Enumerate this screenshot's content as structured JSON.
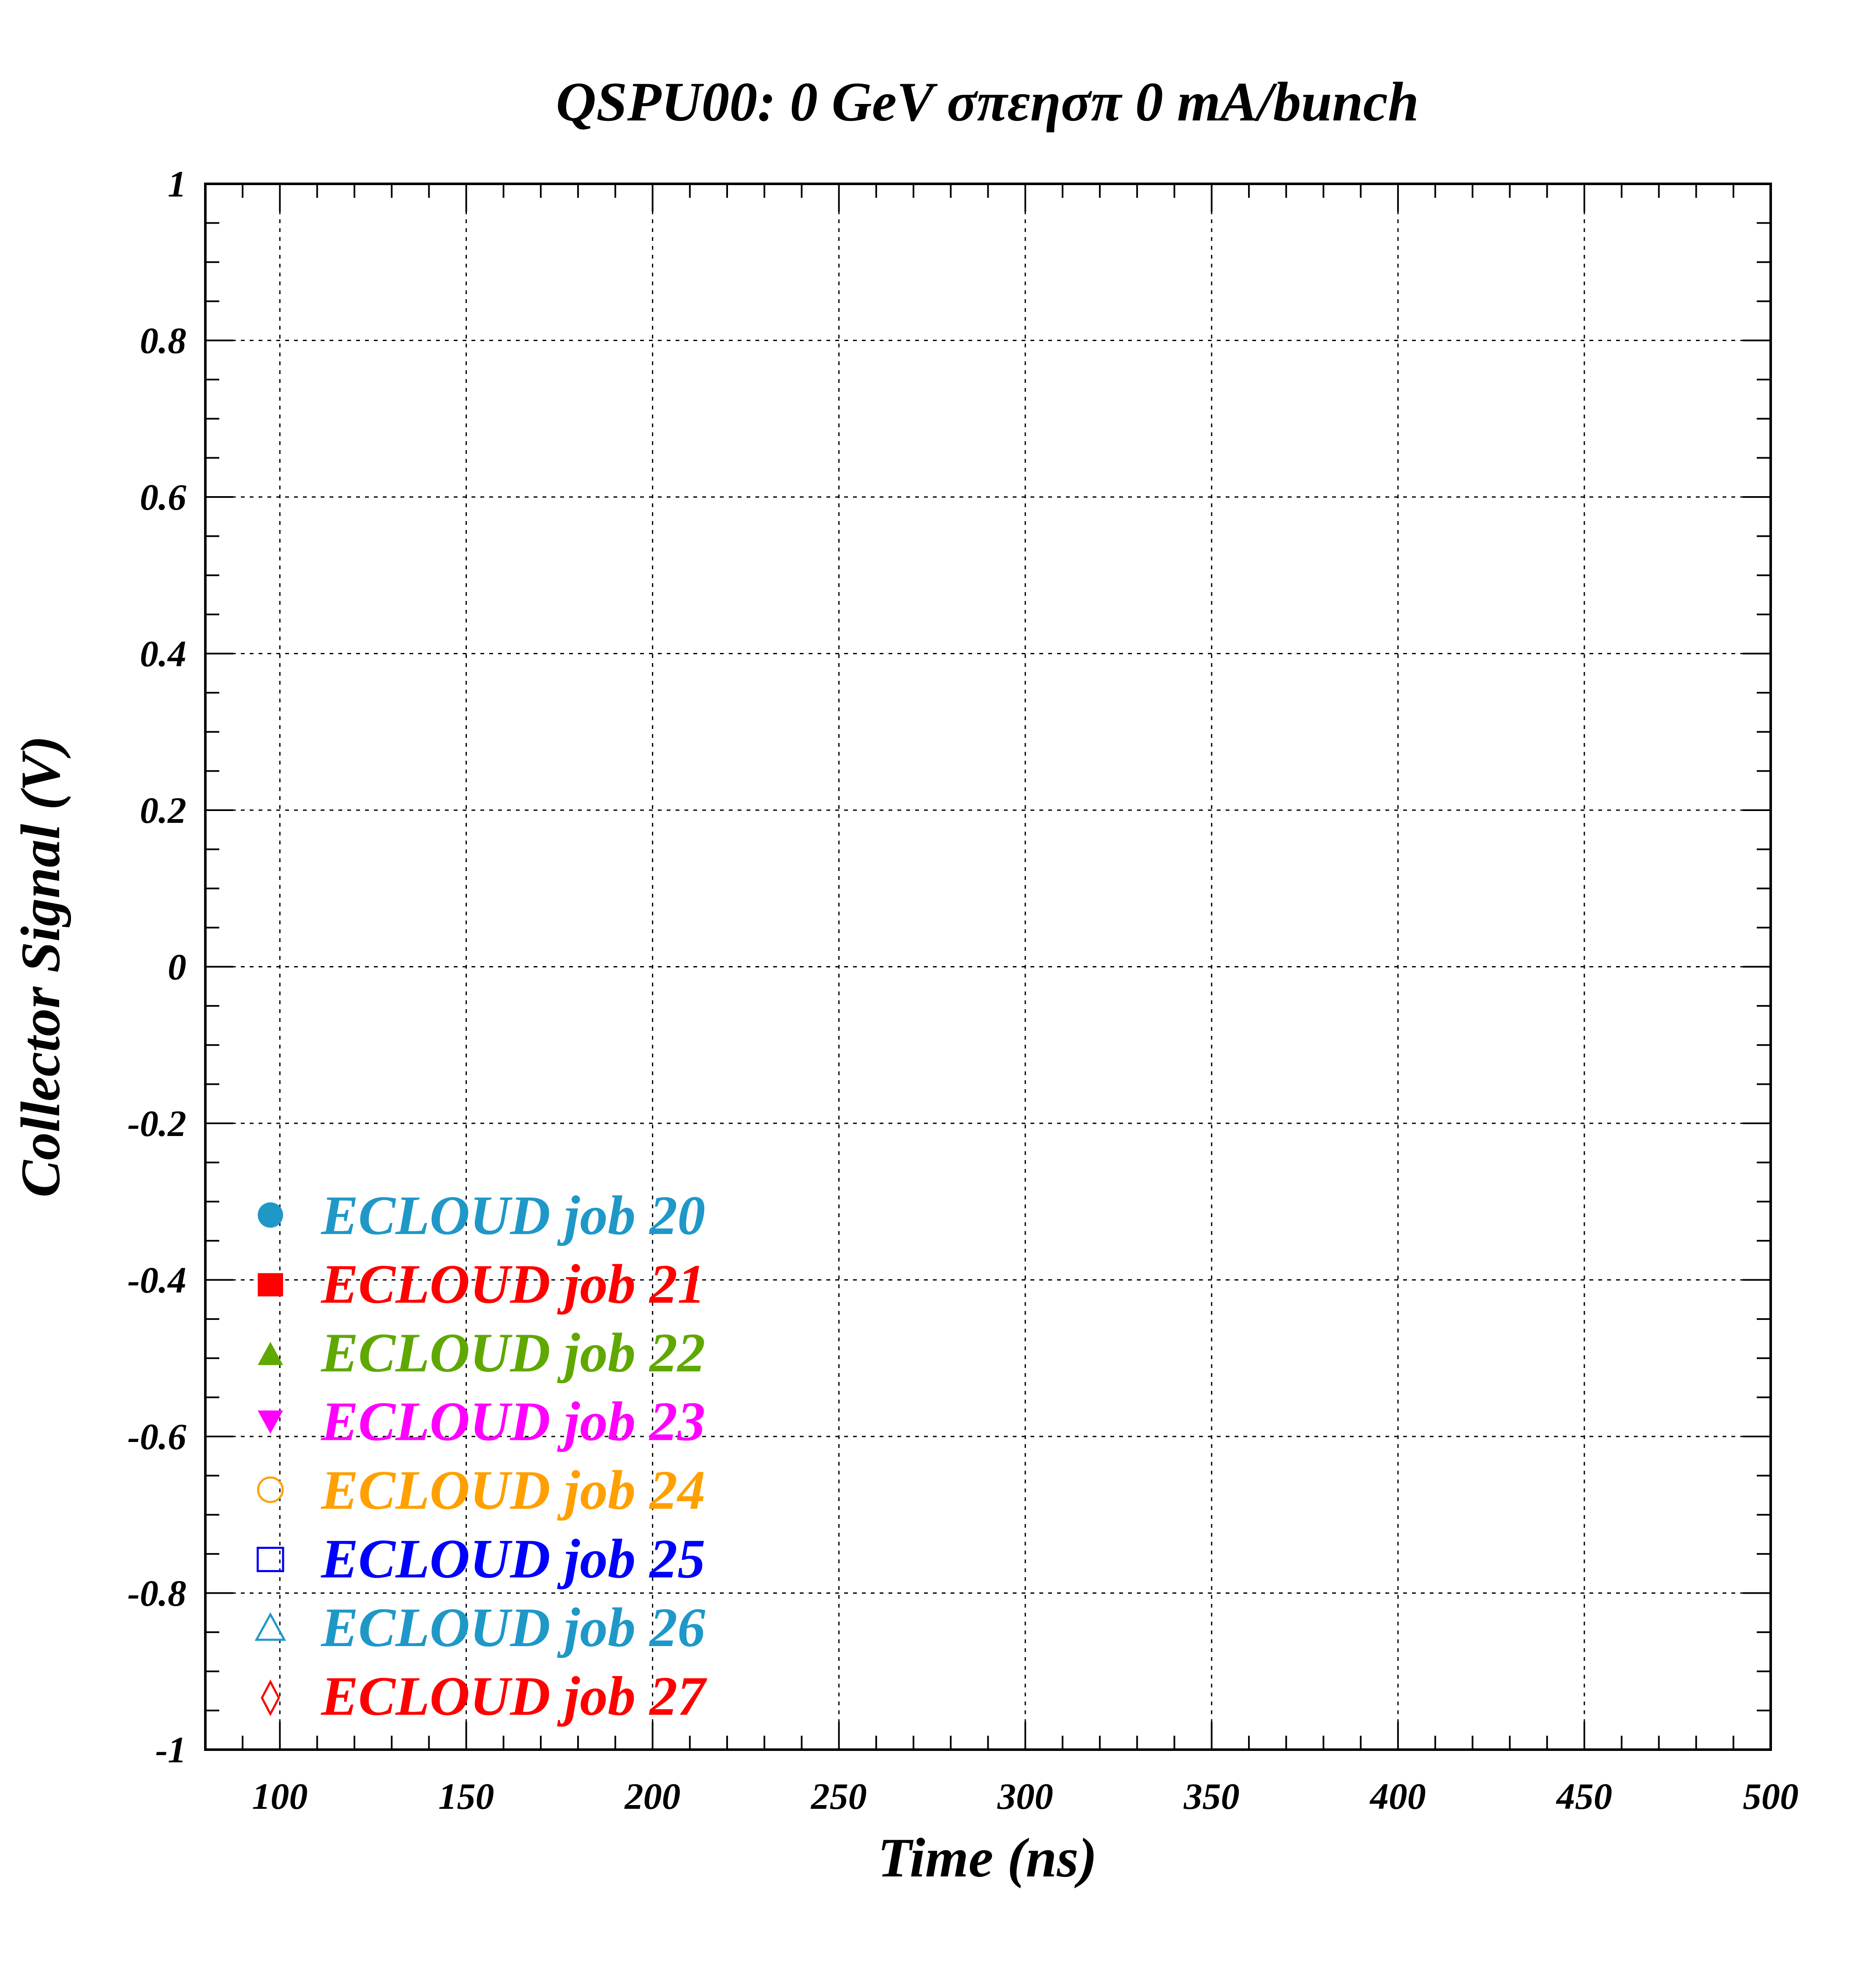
{
  "chart_data": {
    "type": "scatter",
    "title": "QSPU00: 0 GeV σπεησπ 0 mA/bunch",
    "xlabel": "Time (ns)",
    "ylabel": "Collector Signal (V)",
    "xlim": [
      80,
      500
    ],
    "ylim": [
      -1,
      1
    ],
    "x_ticks": [
      100,
      150,
      200,
      250,
      300,
      350,
      400,
      450,
      500
    ],
    "x_tick_labels": [
      "100",
      "150",
      "200",
      "250",
      "300",
      "350",
      "400",
      "450",
      "500"
    ],
    "y_ticks": [
      -1,
      -0.8,
      -0.6,
      -0.4,
      -0.2,
      0,
      0.2,
      0.4,
      0.6,
      0.8,
      1
    ],
    "y_tick_labels": [
      "-1",
      "-0.8",
      "-0.6",
      "-0.4",
      "-0.2",
      "0",
      "0.2",
      "0.4",
      "0.6",
      "0.8",
      "1"
    ],
    "grid": true,
    "legend_placement": "bottom-left",
    "series": [
      {
        "name": "ECLOUD job 20",
        "color": "#1f98c8",
        "marker": "filled-circle",
        "x": [],
        "y": []
      },
      {
        "name": "ECLOUD job 21",
        "color": "#ff0000",
        "marker": "filled-square",
        "x": [],
        "y": []
      },
      {
        "name": "ECLOUD job 22",
        "color": "#5fa800",
        "marker": "filled-triangle-up",
        "x": [],
        "y": []
      },
      {
        "name": "ECLOUD job 23",
        "color": "#ff00ff",
        "marker": "filled-triangle-down",
        "x": [],
        "y": []
      },
      {
        "name": "ECLOUD job 24",
        "color": "#ffa000",
        "marker": "open-circle",
        "x": [],
        "y": []
      },
      {
        "name": "ECLOUD job 25",
        "color": "#0000ff",
        "marker": "open-square",
        "x": [],
        "y": []
      },
      {
        "name": "ECLOUD job 26",
        "color": "#1f98c8",
        "marker": "open-triangle-up",
        "x": [],
        "y": []
      },
      {
        "name": "ECLOUD job 27",
        "color": "#ff0000",
        "marker": "open-diamond",
        "x": [],
        "y": []
      }
    ]
  }
}
